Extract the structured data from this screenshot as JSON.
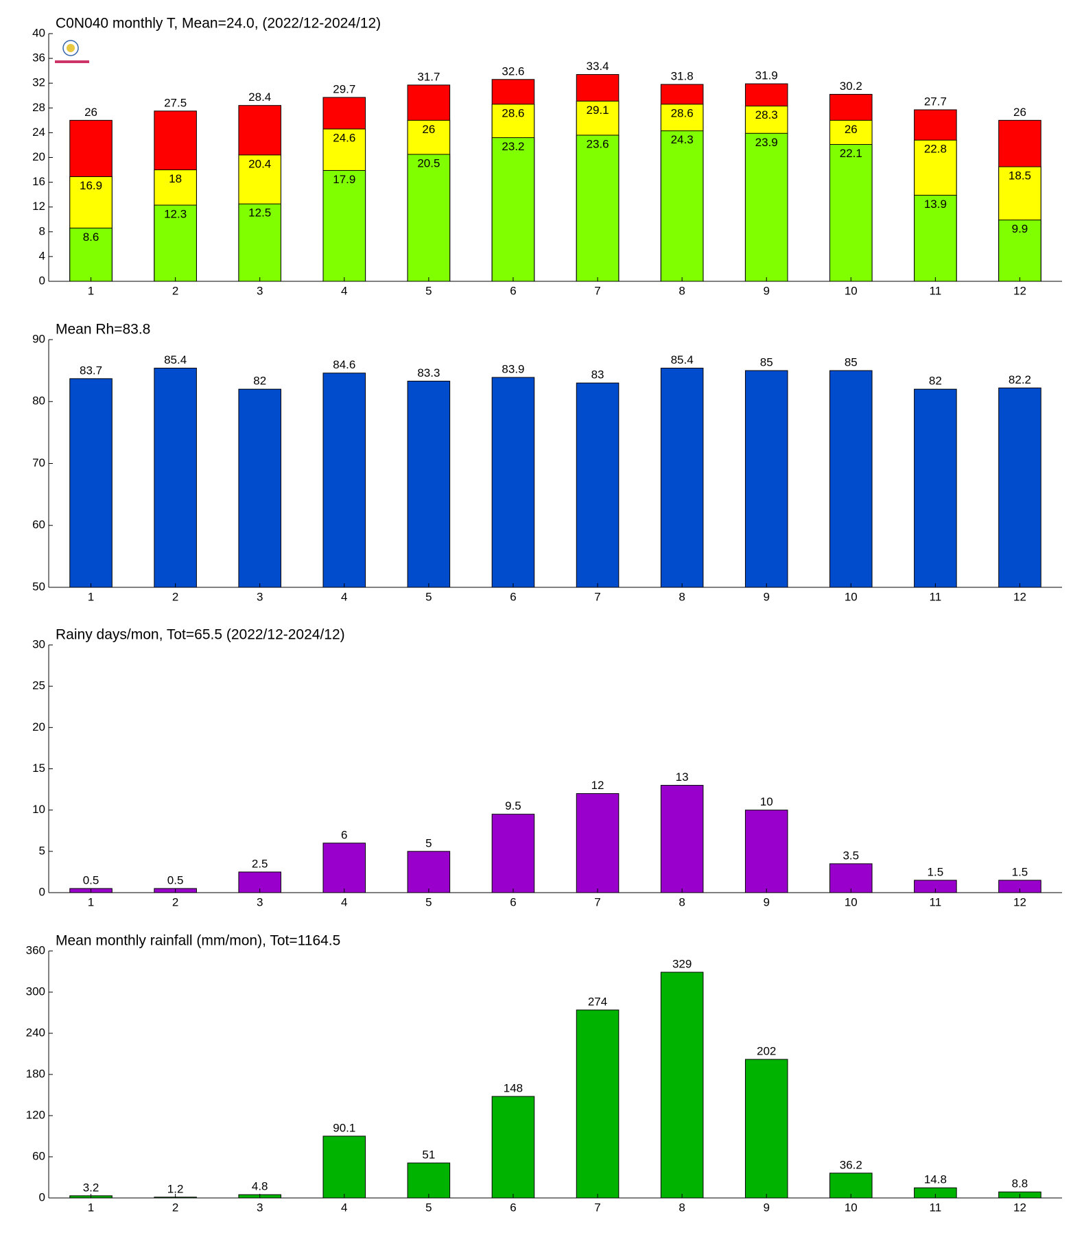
{
  "chart_data": [
    {
      "type": "bar",
      "barmode": "overlay",
      "title": "C0N040 monthly T, Mean=24.0, (2022/12-2024/12)",
      "categories": [
        "1",
        "2",
        "3",
        "4",
        "5",
        "6",
        "7",
        "8",
        "9",
        "10",
        "11",
        "12"
      ],
      "series": [
        {
          "color": "#ff0000",
          "values": [
            26,
            27.5,
            28.4,
            29.7,
            31.7,
            32.6,
            33.4,
            31.8,
            31.9,
            30.2,
            27.7,
            26
          ]
        },
        {
          "color": "#ffff00",
          "values": [
            16.9,
            18,
            20.4,
            24.6,
            26,
            28.6,
            29.1,
            28.6,
            28.3,
            26,
            22.8,
            18.5
          ]
        },
        {
          "color": "#80ff00",
          "values": [
            8.6,
            12.3,
            12.5,
            17.9,
            20.5,
            23.2,
            23.6,
            24.3,
            23.9,
            22.1,
            13.9,
            9.9
          ]
        }
      ],
      "ylim": [
        0,
        40
      ],
      "yticks": [
        0,
        4,
        8,
        12,
        16,
        20,
        24,
        28,
        32,
        36,
        40
      ]
    },
    {
      "type": "bar",
      "title": "Mean Rh=83.8",
      "categories": [
        "1",
        "2",
        "3",
        "4",
        "5",
        "6",
        "7",
        "8",
        "9",
        "10",
        "11",
        "12"
      ],
      "values": [
        83.7,
        85.4,
        82,
        84.6,
        83.3,
        83.9,
        83,
        85.4,
        85,
        85,
        82,
        82.2
      ],
      "color": "#004ccc",
      "ylim": [
        50,
        90
      ],
      "yticks": [
        50,
        60,
        70,
        80,
        90
      ]
    },
    {
      "type": "bar",
      "title": "Rainy days/mon, Tot=65.5 (2022/12-2024/12)",
      "categories": [
        "1",
        "2",
        "3",
        "4",
        "5",
        "6",
        "7",
        "8",
        "9",
        "10",
        "11",
        "12"
      ],
      "values": [
        0.5,
        0.5,
        2.5,
        6,
        5,
        9.5,
        12,
        13,
        10,
        3.5,
        1.5,
        1.5
      ],
      "color": "#9900cc",
      "ylim": [
        0,
        30
      ],
      "yticks": [
        0,
        5,
        10,
        15,
        20,
        25,
        30
      ]
    },
    {
      "type": "bar",
      "title": "Mean monthly rainfall (mm/mon), Tot=1164.5",
      "categories": [
        "1",
        "2",
        "3",
        "4",
        "5",
        "6",
        "7",
        "8",
        "9",
        "10",
        "11",
        "12"
      ],
      "values": [
        3.2,
        1.2,
        4.8,
        90.1,
        51,
        148,
        274,
        329,
        202,
        36.2,
        14.8,
        8.8
      ],
      "color": "#00b300",
      "ylim": [
        0,
        360
      ],
      "yticks": [
        0,
        60,
        120,
        180,
        240,
        300,
        360
      ]
    }
  ]
}
